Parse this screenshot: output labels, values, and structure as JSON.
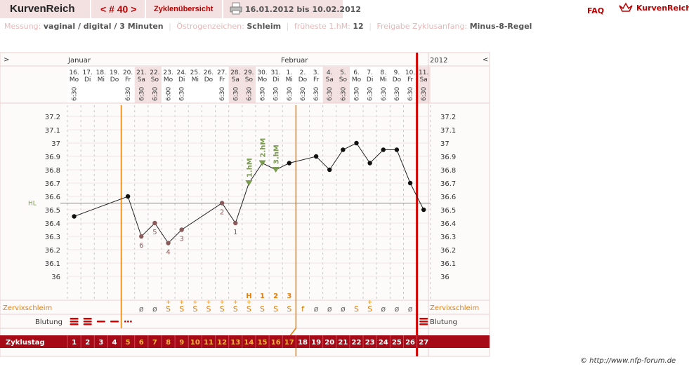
{
  "header": {
    "brand": "KurvenReich",
    "cycle_nav": "< # 40 >",
    "overview_link": "Zyklenübersicht",
    "print_icon": "printer-icon",
    "date_range": "16.01.2012 bis 10.02.2012",
    "faq": "FAQ",
    "logo_text": "KurvenReich",
    "logo_icon": "crown-icon"
  },
  "settings": {
    "messung_label": "Messung:",
    "messung_value": "vaginal / digital / 3 Minuten",
    "oestrogen_label": "Östrogenzeichen:",
    "oestrogen_value": "Schleim",
    "frueheste_label": "früheste 1.hM:",
    "frueheste_value": "12",
    "freigabe_label": "Freigabe Zyklusanfang:",
    "freigabe_value": "Minus-8-Regel"
  },
  "chart_data": {
    "type": "line",
    "year": "2012",
    "nav_left": ">",
    "nav_right": "<",
    "month_labels": [
      "Januar",
      "Februar"
    ],
    "days": [
      {
        "date": "16.",
        "wd": "Mo",
        "time": "6:30",
        "cd": "1",
        "bleed": "heavy"
      },
      {
        "date": "17.",
        "wd": "Di",
        "time": "",
        "cd": "2",
        "bleed": "heavy"
      },
      {
        "date": "18.",
        "wd": "Mi",
        "time": "",
        "cd": "3",
        "bleed": "medium"
      },
      {
        "date": "19.",
        "wd": "Do",
        "time": "",
        "cd": "4",
        "bleed": "medium"
      },
      {
        "date": "20.",
        "wd": "Fr",
        "time": "6:30",
        "cd": "5",
        "bleed": "spotting"
      },
      {
        "date": "21.",
        "wd": "Sa",
        "time": "6:30",
        "cd": "6",
        "mucus": "ø"
      },
      {
        "date": "22.",
        "wd": "So",
        "time": "6:30",
        "cd": "7",
        "mucus": "ø"
      },
      {
        "date": "23.",
        "wd": "Mo",
        "time": "6:00",
        "cd": "8",
        "mucus": "S+"
      },
      {
        "date": "24.",
        "wd": "Di",
        "time": "6:30",
        "cd": "9",
        "mucus": "S+"
      },
      {
        "date": "25.",
        "wd": "Mi",
        "time": "",
        "cd": "10",
        "mucus": "S+"
      },
      {
        "date": "26.",
        "wd": "Do",
        "time": "",
        "cd": "11",
        "mucus": "S+"
      },
      {
        "date": "27.",
        "wd": "Fr",
        "time": "6:30",
        "cd": "12",
        "mucus": "S+"
      },
      {
        "date": "28.",
        "wd": "Sa",
        "time": "6:30",
        "cd": "13",
        "mucus": "S+"
      },
      {
        "date": "29.",
        "wd": "So",
        "time": "6:30",
        "cd": "14",
        "mucus": "S+",
        "mucus_peak": "H"
      },
      {
        "date": "30.",
        "wd": "Mo",
        "time": "6:30",
        "cd": "15",
        "mucus": "S",
        "mucus_peak": "1"
      },
      {
        "date": "31.",
        "wd": "Di",
        "time": "6:30",
        "cd": "16",
        "mucus": "S",
        "mucus_peak": "2"
      },
      {
        "date": "1.",
        "wd": "Mi",
        "time": "6:30",
        "cd": "17",
        "mucus": "S",
        "mucus_peak": "3"
      },
      {
        "date": "2.",
        "wd": "Do",
        "time": "6:30",
        "cd": "18",
        "mucus": "f"
      },
      {
        "date": "3.",
        "wd": "Fr",
        "time": "6:30",
        "cd": "19",
        "mucus": "ø"
      },
      {
        "date": "4.",
        "wd": "Sa",
        "time": "6:30",
        "cd": "20",
        "mucus": "ø"
      },
      {
        "date": "5.",
        "wd": "So",
        "time": "6:30",
        "cd": "21",
        "mucus": "ø"
      },
      {
        "date": "6.",
        "wd": "Mo",
        "time": "6:30",
        "cd": "22",
        "mucus": "S"
      },
      {
        "date": "7.",
        "wd": "Di",
        "time": "6:30",
        "cd": "23",
        "mucus": "S+"
      },
      {
        "date": "8.",
        "wd": "Mi",
        "time": "6:30",
        "cd": "24",
        "mucus": "ø"
      },
      {
        "date": "9.",
        "wd": "Do",
        "time": "6:30",
        "cd": "25",
        "mucus": "ø"
      },
      {
        "date": "10.",
        "wd": "Fr",
        "time": "6:30",
        "cd": "26",
        "mucus": "ø"
      },
      {
        "date": "11.",
        "wd": "Sa",
        "time": "6:30",
        "cd": "27",
        "bleed": "heavy"
      }
    ],
    "temps": [
      36.45,
      null,
      null,
      null,
      36.6,
      36.3,
      36.4,
      36.25,
      36.35,
      null,
      null,
      36.55,
      36.4,
      36.7,
      36.85,
      36.8,
      36.85,
      null,
      36.9,
      36.8,
      36.95,
      37.0,
      36.85,
      36.95,
      36.95,
      36.7,
      36.5
    ],
    "temp_markers": {
      "5": "6",
      "6": "5",
      "7": "4",
      "8": "3",
      "11": "2",
      "12": "1"
    },
    "hm_markers": {
      "13": "1.hM",
      "14": "2.hM",
      "15": "3.hM"
    },
    "ylim": [
      36.0,
      37.2
    ],
    "y_ticks": [
      "37.2",
      "37.1",
      "37",
      "36.9",
      "36.8",
      "36.7",
      "36.6",
      "36.5",
      "36.4",
      "36.3",
      "36.2",
      "36.1",
      "36"
    ],
    "hl": {
      "label": "HL",
      "value": 36.55
    },
    "row_labels": {
      "mucus": "Zervixschleim",
      "bleeding": "Blutung",
      "cycle_day": "Zyklustag"
    },
    "colors": {
      "accent": "#b00000",
      "orange": "#e87e0a",
      "hl": "#7a9a50",
      "pink": "#f3e1e1",
      "cd_bar": "#a60a17",
      "marker": "#8b5a5a"
    }
  },
  "footer": "© http://www.nfp-forum.de"
}
